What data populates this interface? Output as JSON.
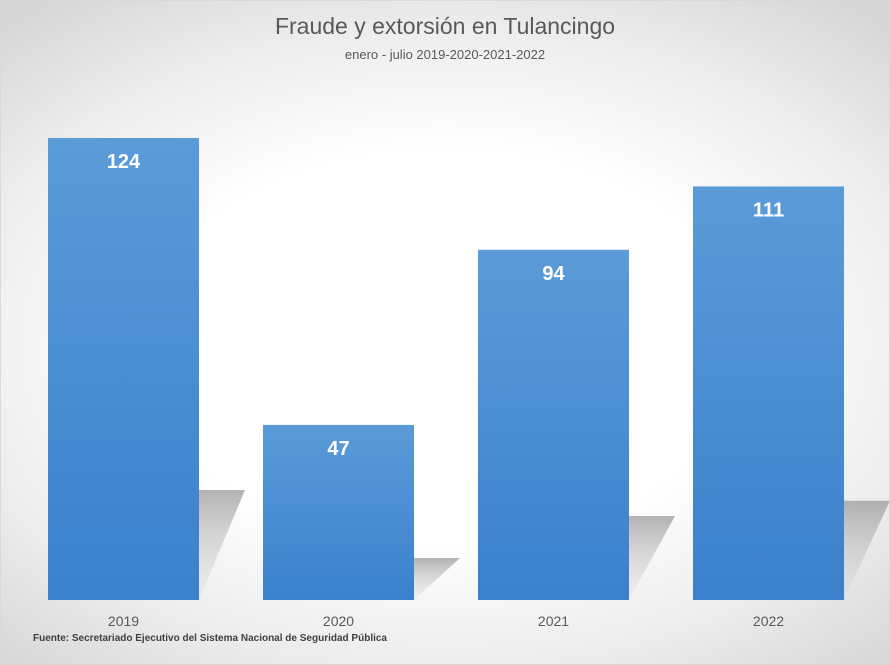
{
  "chart_data": {
    "type": "bar",
    "title": "Fraude y extorsión en Tulancingo",
    "subtitle": "enero - julio 2019-2020-2021-2022",
    "categories": [
      "2019",
      "2020",
      "2021",
      "2022"
    ],
    "values": [
      124,
      47,
      94,
      111
    ],
    "xlabel": "",
    "ylabel": "",
    "ylim": [
      0,
      124
    ],
    "grid": false,
    "legend": "none",
    "data_labels": true,
    "bar_color": "#4a8fd6",
    "label_color": "#ffffff"
  },
  "source_note": "Fuente: Secretariado Ejecutivo del Sistema Nacional de Seguridad Pública"
}
